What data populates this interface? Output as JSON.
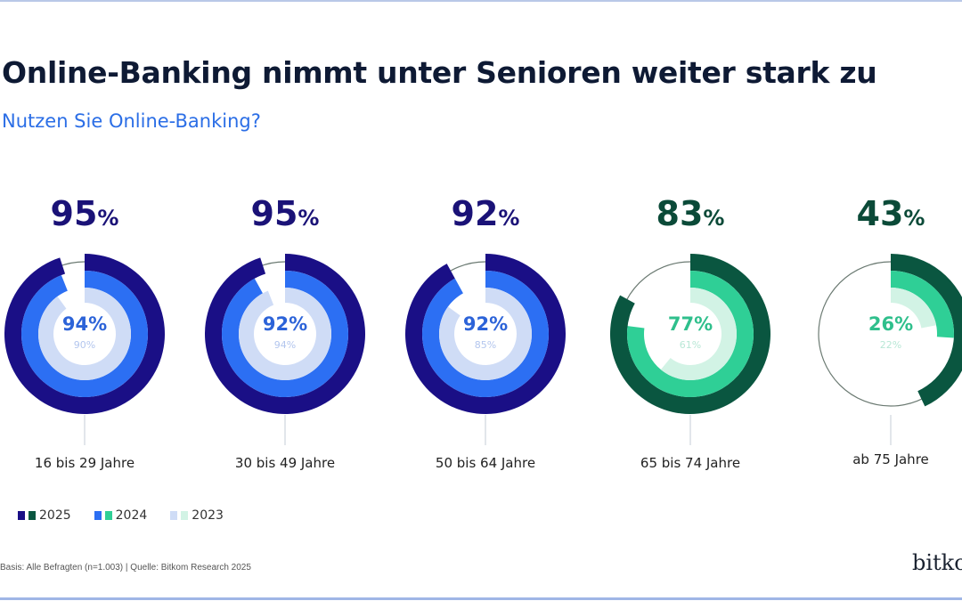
{
  "title": "Online-Banking nimmt unter Senioren weiter stark zu",
  "subtitle": "Nutzen Sie Online-Banking?",
  "chart_data": {
    "type": "radial-donut",
    "unit": "%",
    "categories": [
      "16 bis 29 Jahre",
      "30 bis 49 Jahre",
      "50 bis 64 Jahre",
      "65 bis 74 Jahre",
      "ab 75 Jahre"
    ],
    "series": [
      {
        "name": "2025",
        "values": [
          95,
          95,
          92,
          83,
          43
        ]
      },
      {
        "name": "2024",
        "values": [
          94,
          92,
          92,
          77,
          26
        ]
      },
      {
        "name": "2023",
        "values": [
          90,
          94,
          85,
          61,
          22
        ]
      }
    ],
    "labels": {
      "top": [
        "95",
        "95",
        "92",
        "83",
        "43"
      ],
      "mid": [
        "94%",
        "92%",
        "92%",
        "77%",
        "26%"
      ],
      "inner": [
        "90%",
        "94%",
        "85%",
        "61%",
        "22%"
      ],
      "pct": "%"
    },
    "palettes": {
      "blue": {
        "2025": "#1a0f86",
        "2024": "#2c6ff3",
        "2023": "#cfdcf6",
        "label": "#1a1277",
        "mid": "#2c63d8",
        "inner": "#b3c6ee"
      },
      "green": {
        "2025": "#0a5640",
        "2024": "#2fcf96",
        "2023": "#d2f3e5",
        "label": "#0b4a38",
        "mid": "#2fbf8c",
        "inner": "#b9e8d6"
      }
    },
    "category_palette": [
      "blue",
      "blue",
      "blue",
      "green",
      "green"
    ]
  },
  "legend": [
    {
      "label": "2025",
      "colors": [
        "#1a0f86",
        "#0a5640"
      ]
    },
    {
      "label": "2024",
      "colors": [
        "#2c6ff3",
        "#2fcf96"
      ]
    },
    {
      "label": "2023",
      "colors": [
        "#cfdcf6",
        "#d2f3e5"
      ]
    }
  ],
  "footer": "Basis: Alle Befragten (n=1.003) | Quelle: Bitkom Research 2025",
  "logo": "bitkom"
}
